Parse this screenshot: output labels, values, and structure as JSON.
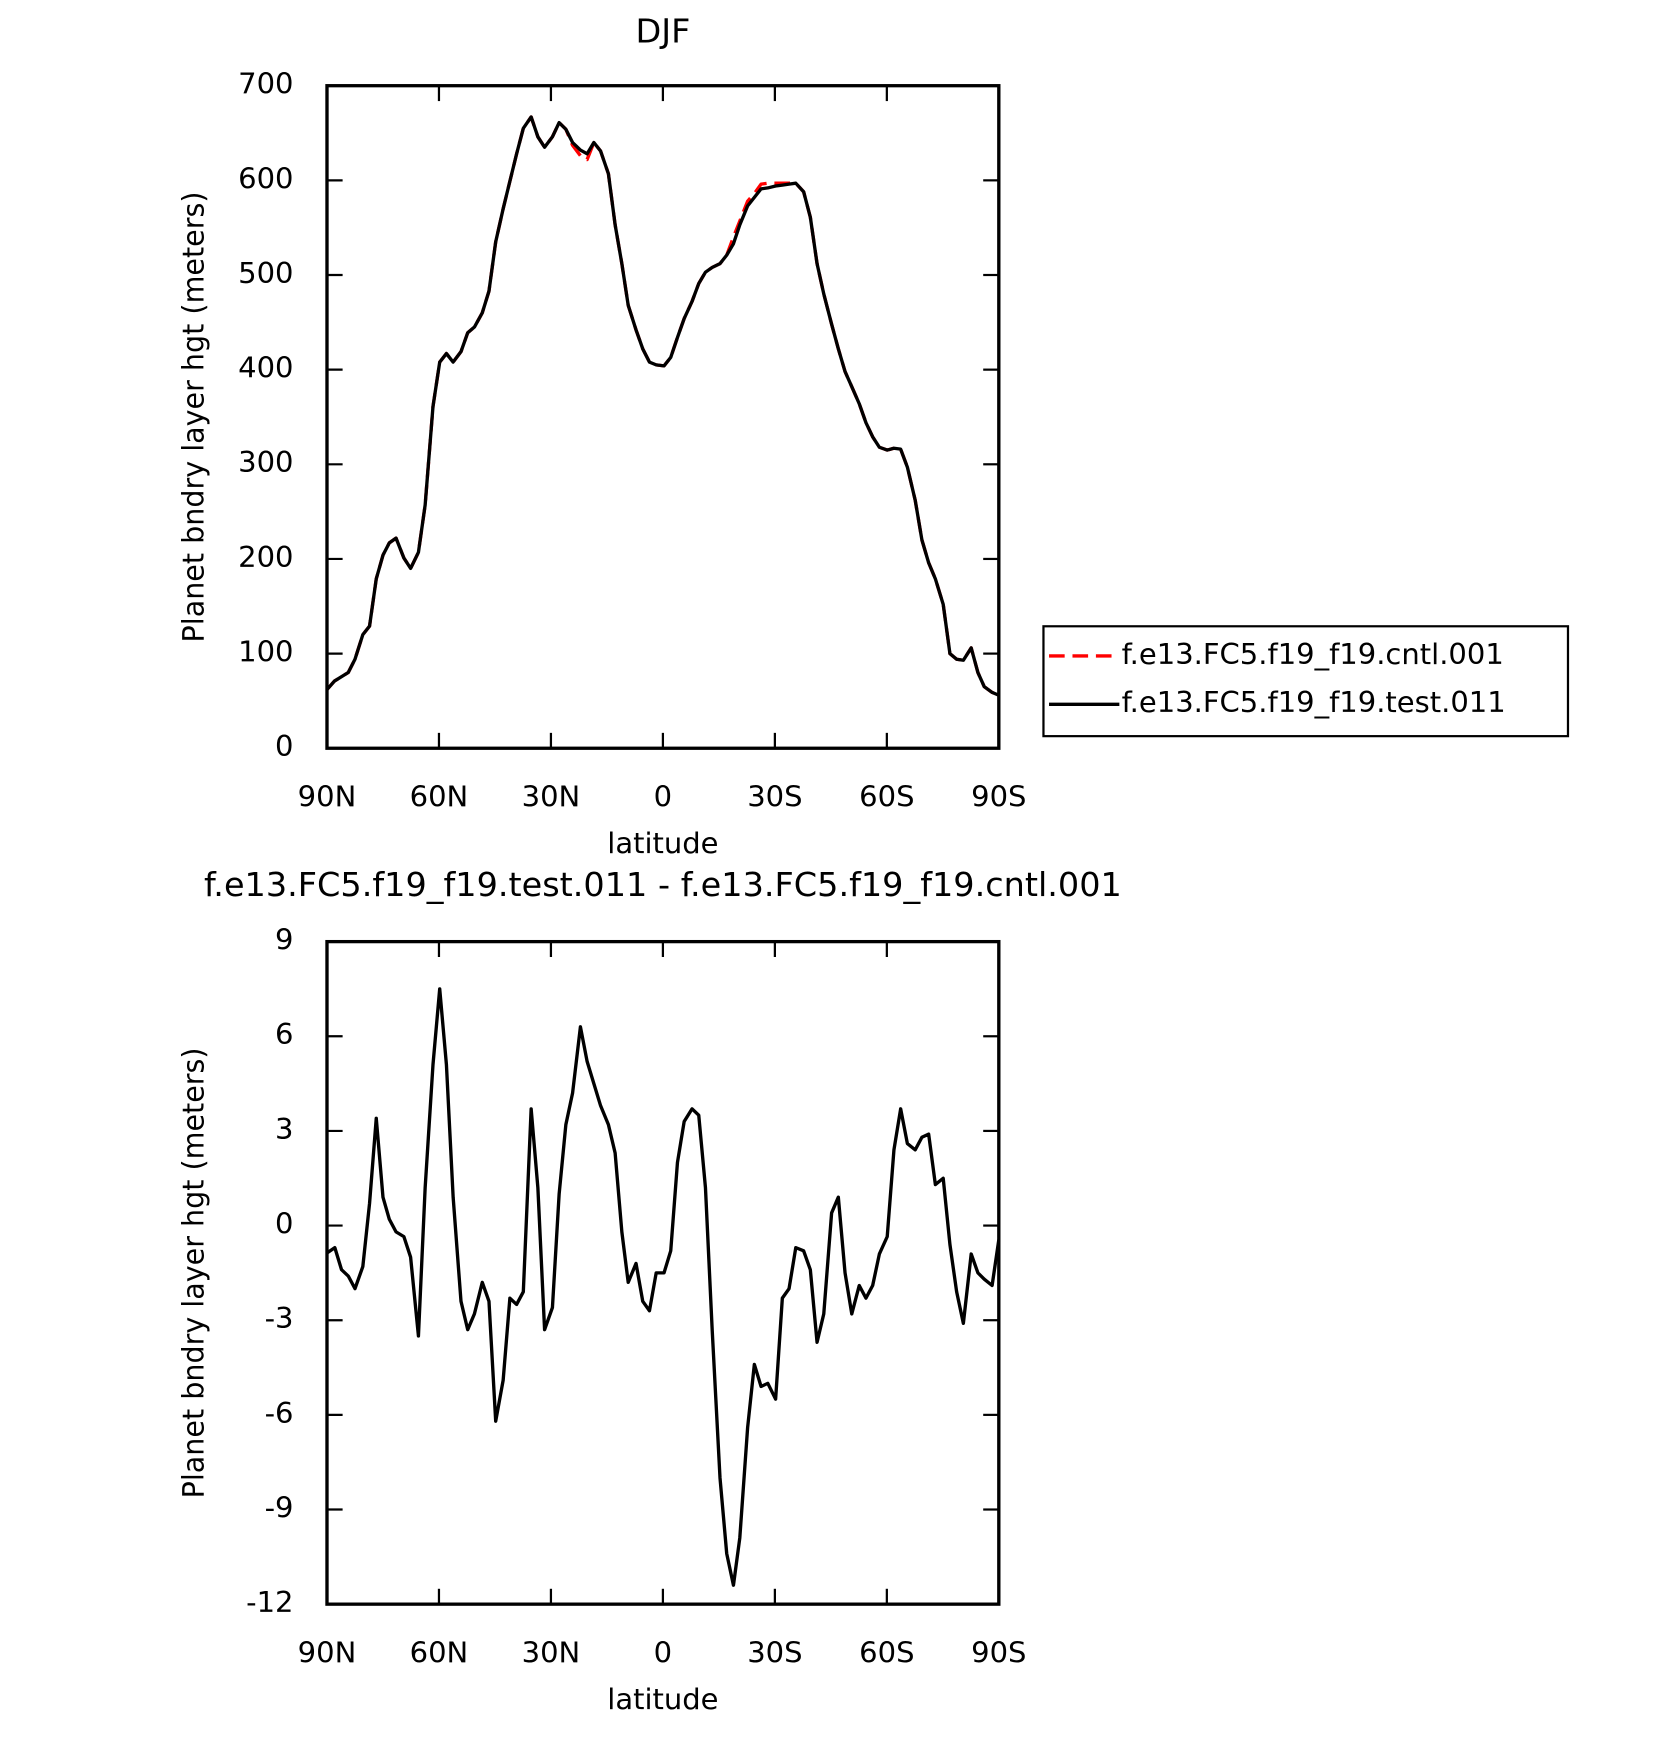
{
  "chart_data": [
    {
      "type": "line",
      "title": "DJF",
      "xlabel": "latitude",
      "ylabel": "Planet bndry layer hgt (meters)",
      "x": [
        90,
        88,
        84.3,
        82.5,
        80.4,
        78.6,
        76.8,
        75,
        73.3,
        71.5,
        69.4,
        67.6,
        65.5,
        63.7,
        61.6,
        59.8,
        58,
        56.2,
        54.1,
        52.3,
        50.5,
        48.4,
        46.6,
        44.8,
        42.8,
        41,
        39.2,
        37.4,
        35.3,
        33.5,
        31.7,
        29.6,
        27.8,
        26,
        24.2,
        22.1,
        20.3,
        18.5,
        16.7,
        14.6,
        12.8,
        11,
        9.3,
        7.2,
        5.4,
        3.6,
        1.8,
        -0.3,
        -2.1,
        -3.9,
        -5.7,
        -7.8,
        -9.6,
        -11.4,
        -13.2,
        -15.3,
        -17.1,
        -18.9,
        -20.6,
        -22.7,
        -24.5,
        -26.3,
        -28.1,
        -30.2,
        -32,
        -33.8,
        -35.6,
        -37.7,
        -39.5,
        -41.3,
        -43.1,
        -45.2,
        -47,
        -48.8,
        -50.6,
        -52.6,
        -54.4,
        -56.2,
        -58,
        -60.1,
        -61.9,
        -63.7,
        -65.5,
        -67.6,
        -69.4,
        -71.2,
        -73,
        -75.1,
        -76.9,
        -78.7,
        -80.5,
        -82.6,
        -84.4,
        -86.1,
        -88.2,
        -90
      ],
      "series": [
        {
          "name": "f.e13.FC5.f19_f19.cntl.001",
          "color": "#ff0000",
          "linestyle": "dashed",
          "values": [
            62,
            71,
            80,
            94,
            120,
            129,
            179,
            204,
            217,
            222,
            201,
            190,
            207,
            257,
            361,
            408,
            417,
            408,
            419,
            439,
            445,
            460,
            483,
            535,
            570,
            599,
            628,
            655,
            667,
            646,
            635,
            646,
            661,
            654,
            637,
            626,
            622,
            640,
            631,
            607,
            553,
            512,
            468,
            442,
            422,
            408,
            405,
            404,
            413,
            434,
            454,
            472,
            491,
            503,
            508,
            512,
            521,
            540,
            557,
            578,
            586,
            596,
            597,
            597,
            597,
            597,
            597,
            588,
            561,
            512,
            480,
            448,
            422,
            398,
            382,
            364,
            344,
            329,
            318,
            315,
            317,
            316,
            297,
            262,
            220,
            196,
            179,
            152,
            100,
            94,
            93,
            106,
            80,
            65,
            59,
            56
          ]
        },
        {
          "name": "f.e13.FC5.f19_f19.test.011",
          "color": "#000000",
          "linestyle": "solid",
          "values": [
            62,
            71,
            80,
            94,
            120,
            129,
            179,
            204,
            217,
            222,
            201,
            190,
            207,
            257,
            361,
            408,
            417,
            408,
            419,
            439,
            445,
            460,
            483,
            535,
            570,
            599,
            628,
            655,
            667,
            646,
            635,
            646,
            661,
            654,
            640,
            632,
            628,
            640,
            631,
            607,
            553,
            512,
            468,
            442,
            422,
            408,
            405,
            404,
            413,
            434,
            454,
            472,
            491,
            503,
            508,
            512,
            521,
            533,
            553,
            573,
            582,
            591,
            592,
            594,
            595,
            596,
            597,
            588,
            561,
            512,
            480,
            448,
            422,
            398,
            382,
            364,
            344,
            329,
            318,
            315,
            317,
            316,
            297,
            262,
            220,
            196,
            179,
            152,
            100,
            94,
            93,
            106,
            80,
            65,
            59,
            56
          ]
        }
      ],
      "xlim": [
        90,
        -90
      ],
      "xticks": [
        {
          "value": 90,
          "label": "90N"
        },
        {
          "value": 60,
          "label": "60N"
        },
        {
          "value": 30,
          "label": "30N"
        },
        0,
        {
          "value": -30,
          "label": "30S"
        },
        {
          "value": -60,
          "label": "60S"
        },
        {
          "value": -90,
          "label": "90S"
        }
      ],
      "ylim": [
        0,
        700
      ],
      "yticks": [
        0,
        100,
        200,
        300,
        400,
        500,
        600,
        700
      ],
      "legend": "right"
    },
    {
      "type": "line",
      "title": "f.e13.FC5.f19_f19.test.011 - f.e13.FC5.f19_f19.cntl.001",
      "xlabel": "latitude",
      "ylabel": "Planet bndry layer hgt (meters)",
      "x": [
        90,
        87.9,
        86.1,
        84.3,
        82.5,
        80.4,
        78.6,
        76.8,
        75,
        73.3,
        71.5,
        69.4,
        67.6,
        65.5,
        63.7,
        61.6,
        59.8,
        58,
        56.2,
        54.1,
        52.3,
        50.5,
        48.4,
        46.6,
        44.8,
        42.8,
        41,
        39.2,
        37.4,
        35.3,
        33.5,
        31.7,
        29.6,
        27.8,
        26,
        24.2,
        22.1,
        20.3,
        18.5,
        16.7,
        14.6,
        12.8,
        11,
        9.3,
        7.2,
        5.4,
        3.6,
        1.8,
        -0.3,
        -2.1,
        -3.9,
        -5.7,
        -7.8,
        -9.6,
        -11.4,
        -13.2,
        -15.3,
        -17.1,
        -18.9,
        -20.6,
        -22.7,
        -24.5,
        -26.3,
        -28.1,
        -30.2,
        -32,
        -33.8,
        -35.6,
        -37.7,
        -39.5,
        -41.3,
        -43.1,
        -45.2,
        -47,
        -48.8,
        -50.6,
        -52.6,
        -54.4,
        -56.2,
        -58,
        -60.1,
        -61.9,
        -63.7,
        -65.5,
        -67.6,
        -69.4,
        -71.2,
        -73,
        -75.1,
        -76.9,
        -78.7,
        -80.5,
        -82.6,
        -84.4,
        -86.1,
        -88.2,
        -90
      ],
      "values": [
        -0.87,
        -0.7,
        -1.4,
        -1.6,
        -2.0,
        -1.3,
        0.7,
        3.4,
        0.9,
        0.2,
        -0.2,
        -0.35,
        -1.0,
        -3.5,
        1.2,
        5.1,
        7.5,
        5.1,
        0.9,
        -2.4,
        -3.3,
        -2.8,
        -1.8,
        -2.4,
        -6.2,
        -4.9,
        -2.3,
        -2.5,
        -2.1,
        3.7,
        1.2,
        -3.3,
        -2.6,
        1.0,
        3.2,
        4.2,
        6.3,
        5.2,
        4.5,
        3.8,
        3.2,
        2.3,
        -0.2,
        -1.8,
        -1.2,
        -2.4,
        -2.7,
        -1.5,
        -1.5,
        -0.8,
        2.0,
        3.3,
        3.7,
        3.5,
        1.2,
        -3.3,
        -8.0,
        -10.4,
        -11.4,
        -9.9,
        -6.4,
        -4.4,
        -5.1,
        -5.0,
        -5.5,
        -2.3,
        -2.0,
        -0.7,
        -0.8,
        -1.4,
        -3.7,
        -2.8,
        0.4,
        0.9,
        -1.5,
        -2.8,
        -1.9,
        -2.3,
        -1.9,
        -0.9,
        -0.35,
        2.4,
        3.7,
        2.6,
        2.4,
        2.8,
        2.9,
        1.3,
        1.5,
        -0.6,
        -2.1,
        -3.1,
        -0.9,
        -1.5,
        -1.7,
        -1.9,
        -0.45
      ],
      "color": "#000000",
      "xlim": [
        90,
        -90
      ],
      "xticks": [
        {
          "value": 90,
          "label": "90N"
        },
        {
          "value": 60,
          "label": "60N"
        },
        {
          "value": 30,
          "label": "30N"
        },
        0,
        {
          "value": -30,
          "label": "30S"
        },
        {
          "value": -60,
          "label": "60S"
        },
        {
          "value": -90,
          "label": "90S"
        }
      ],
      "ylim": [
        -12,
        9
      ],
      "yticks": [
        -12,
        -9,
        -6,
        -3,
        0,
        3,
        6,
        9
      ]
    }
  ]
}
